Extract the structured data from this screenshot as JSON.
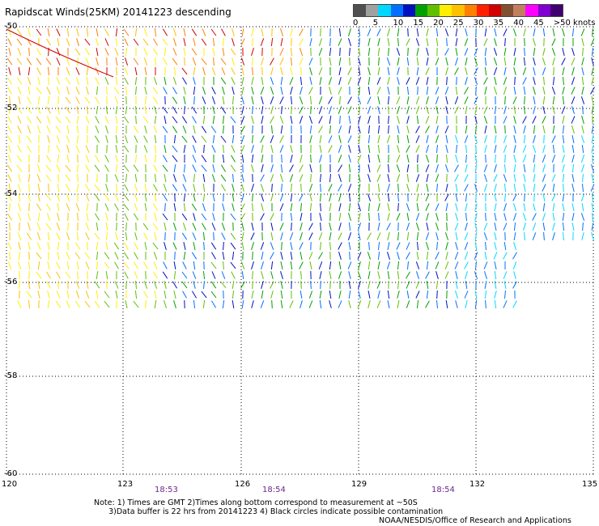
{
  "title": "Rapidscat Winds(25KM) 20141223 descending",
  "legend": {
    "colors": [
      "#505050",
      "#a0a0a0",
      "#00d8ff",
      "#0070ff",
      "#0010c0",
      "#00a000",
      "#60c000",
      "#ffee00",
      "#ffc000",
      "#ff8000",
      "#ff2000",
      "#d00000",
      "#805030",
      "#c08060",
      "#ff00ff",
      "#8000d0",
      "#400070"
    ],
    "labels": [
      "0",
      "5",
      "10",
      "15",
      "20",
      "25",
      "30",
      "35",
      "40",
      "45",
      ">50 knots"
    ],
    "label_positions": [
      0,
      2,
      4,
      6,
      8,
      10,
      12,
      14,
      16,
      18,
      20
    ]
  },
  "axes": {
    "lat_labels": [
      "-50",
      "-52",
      "-54",
      "-56",
      "-58",
      "-60"
    ],
    "lon_labels": [
      "120",
      "123",
      "126",
      "129",
      "132",
      "135"
    ],
    "time_labels": [
      "18:53",
      "18:54",
      "18:54"
    ]
  },
  "notes": {
    "line1": "Note: 1) Times are GMT 2)Times along bottom correspond to measurement at ~50S",
    "line2": "      3)Data buffer is 22 hrs from 20141223 4) Black circles indicate possible contamination"
  },
  "credit": "NOAA/NESDIS/Office of Research and Applications",
  "colors": {
    "track": "#d40000",
    "timelabel": "#6a2a8a"
  }
}
